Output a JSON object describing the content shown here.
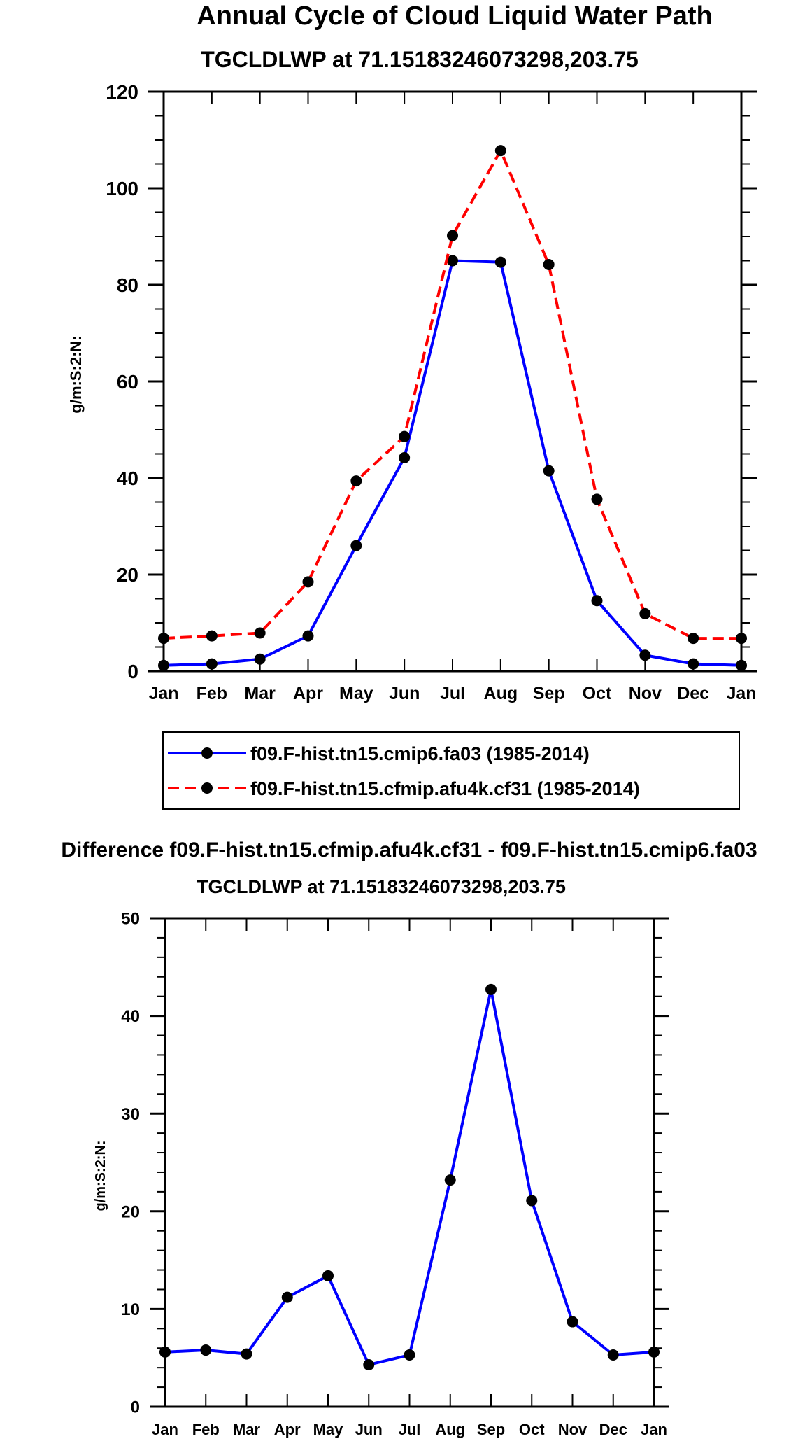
{
  "figure_title": "Annual Cycle of Cloud Liquid Water Path",
  "colors": {
    "series1": "#0000ff",
    "series2": "#ff0000",
    "marker": "#000000",
    "axis": "#000000"
  },
  "chart_data": [
    {
      "type": "line",
      "title": "TGCLDLWP at 71.15183246073298,203.75",
      "xlabel": "",
      "ylabel": "g/m:S:2:N:",
      "categories": [
        "Jan",
        "Feb",
        "Mar",
        "Apr",
        "May",
        "Jun",
        "Jul",
        "Aug",
        "Sep",
        "Oct",
        "Nov",
        "Dec",
        "Jan"
      ],
      "ylim": [
        0,
        120
      ],
      "yticks": [
        0,
        20,
        40,
        60,
        80,
        100,
        120
      ],
      "series": [
        {
          "name": "f09.F-hist.tn15.cmip6.fa03 (1985-2014)",
          "color": "#0000ff",
          "dash": "solid",
          "values": [
            1.2,
            1.5,
            2.5,
            7.3,
            26.0,
            44.2,
            85.0,
            84.7,
            41.5,
            14.6,
            3.3,
            1.5,
            1.2
          ]
        },
        {
          "name": "f09.F-hist.tn15.cfmip.afu4k.cf31 (1985-2014)",
          "color": "#ff0000",
          "dash": "dashed",
          "values": [
            6.8,
            7.3,
            7.9,
            18.5,
            39.4,
            48.6,
            90.2,
            107.8,
            84.2,
            35.6,
            11.9,
            6.8,
            6.8
          ]
        }
      ],
      "legend": [
        "f09.F-hist.tn15.cmip6.fa03 (1985-2014)",
        "f09.F-hist.tn15.cfmip.afu4k.cf31 (1985-2014)"
      ]
    },
    {
      "type": "line",
      "suptitle": "Difference f09.F-hist.tn15.cfmip.afu4k.cf31 - f09.F-hist.tn15.cmip6.fa03",
      "title": "TGCLDLWP at 71.15183246073298,203.75",
      "xlabel": "",
      "ylabel": "g/m:S:2:N:",
      "categories": [
        "Jan",
        "Feb",
        "Mar",
        "Apr",
        "May",
        "Jun",
        "Jul",
        "Aug",
        "Sep",
        "Oct",
        "Nov",
        "Dec",
        "Jan"
      ],
      "ylim": [
        0,
        50
      ],
      "yticks": [
        0,
        10,
        20,
        30,
        40,
        50
      ],
      "series": [
        {
          "name": "difference",
          "color": "#0000ff",
          "dash": "solid",
          "values": [
            5.6,
            5.8,
            5.4,
            11.2,
            13.4,
            4.3,
            5.3,
            23.2,
            42.7,
            21.1,
            8.7,
            5.3,
            5.6
          ]
        }
      ]
    }
  ]
}
